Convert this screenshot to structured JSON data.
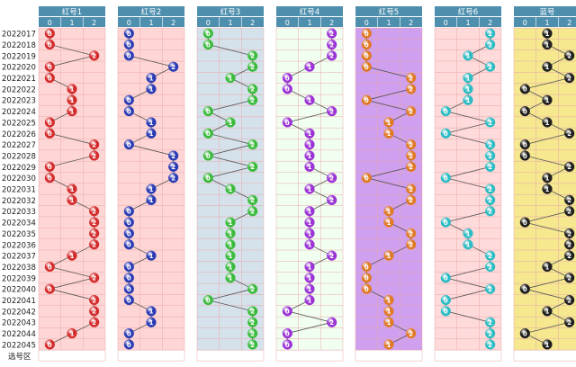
{
  "chart_data": {
    "type": "table",
    "periods": [
      "2022017",
      "2022018",
      "2022019",
      "2022020",
      "2022021",
      "2022022",
      "2022023",
      "2022024",
      "2022025",
      "2022026",
      "2022027",
      "2022028",
      "2022029",
      "2022030",
      "2022031",
      "2022032",
      "2022033",
      "2022034",
      "2022035",
      "2022036",
      "2022037",
      "2022038",
      "2022039",
      "2022040",
      "2022041",
      "2022042",
      "2022043",
      "2022044",
      "2022045"
    ],
    "footer_label": "选号区",
    "column_labels": [
      "0",
      "1",
      "2"
    ],
    "groups": [
      {
        "name": "红号1",
        "colors": {
          "bg": "#ffd6d6",
          "header": "#4e8fae",
          "ball": "#d42c2c",
          "line": "#555555"
        },
        "values": [
          0,
          0,
          2,
          0,
          0,
          1,
          1,
          1,
          0,
          0,
          2,
          2,
          0,
          0,
          1,
          1,
          2,
          2,
          2,
          2,
          1,
          0,
          2,
          0,
          2,
          2,
          2,
          1,
          0
        ]
      },
      {
        "name": "红号2",
        "colors": {
          "bg": "#ffd6d6",
          "header": "#4e8fae",
          "ball": "#2b3cb5",
          "line": "#555555"
        },
        "values": [
          0,
          0,
          0,
          2,
          1,
          1,
          0,
          0,
          1,
          1,
          0,
          2,
          2,
          2,
          1,
          1,
          0,
          0,
          0,
          0,
          1,
          0,
          0,
          0,
          0,
          1,
          1,
          0,
          0
        ]
      },
      {
        "name": "红号3",
        "colors": {
          "bg": "#d5e2ec",
          "header": "#4e8fae",
          "ball": "#3bbb3b",
          "line": "#555555"
        },
        "values": [
          0,
          0,
          2,
          2,
          1,
          2,
          2,
          0,
          1,
          0,
          2,
          0,
          2,
          0,
          1,
          2,
          2,
          1,
          1,
          1,
          1,
          1,
          1,
          2,
          0,
          2,
          2,
          2,
          2
        ]
      },
      {
        "name": "红号4",
        "colors": {
          "bg": "#f1fff1",
          "header": "#4e8fae",
          "ball": "#9b33d6",
          "line": "#555555"
        },
        "values": [
          2,
          2,
          2,
          1,
          0,
          0,
          1,
          2,
          0,
          1,
          1,
          1,
          1,
          2,
          1,
          2,
          1,
          1,
          1,
          1,
          2,
          1,
          1,
          1,
          1,
          0,
          2,
          0,
          0
        ]
      },
      {
        "name": "红号5",
        "colors": {
          "bg": "#cf9ff0",
          "header": "#4e8fae",
          "ball": "#e07a24",
          "line": "#555555"
        },
        "values": [
          0,
          0,
          0,
          0,
          2,
          2,
          0,
          2,
          1,
          1,
          2,
          2,
          2,
          0,
          2,
          2,
          1,
          1,
          2,
          2,
          1,
          0,
          0,
          0,
          1,
          1,
          1,
          2,
          1
        ]
      },
      {
        "name": "红号6",
        "colors": {
          "bg": "#ffdada",
          "header": "#4e8fae",
          "ball": "#2dbcc4",
          "line": "#555555"
        },
        "values": [
          2,
          2,
          1,
          2,
          1,
          1,
          1,
          0,
          2,
          0,
          2,
          2,
          2,
          0,
          2,
          2,
          2,
          0,
          1,
          1,
          2,
          2,
          0,
          2,
          0,
          0,
          2,
          2,
          2
        ]
      },
      {
        "name": "蓝号",
        "colors": {
          "bg": "#f5e88f",
          "header": "#4e8fae",
          "ball": "#1f1f1f",
          "line": "#555555"
        },
        "values": [
          1,
          1,
          2,
          1,
          2,
          0,
          1,
          0,
          1,
          2,
          0,
          0,
          2,
          1,
          1,
          2,
          2,
          0,
          2,
          2,
          2,
          1,
          2,
          0,
          2,
          1,
          2,
          0,
          1
        ]
      }
    ]
  }
}
